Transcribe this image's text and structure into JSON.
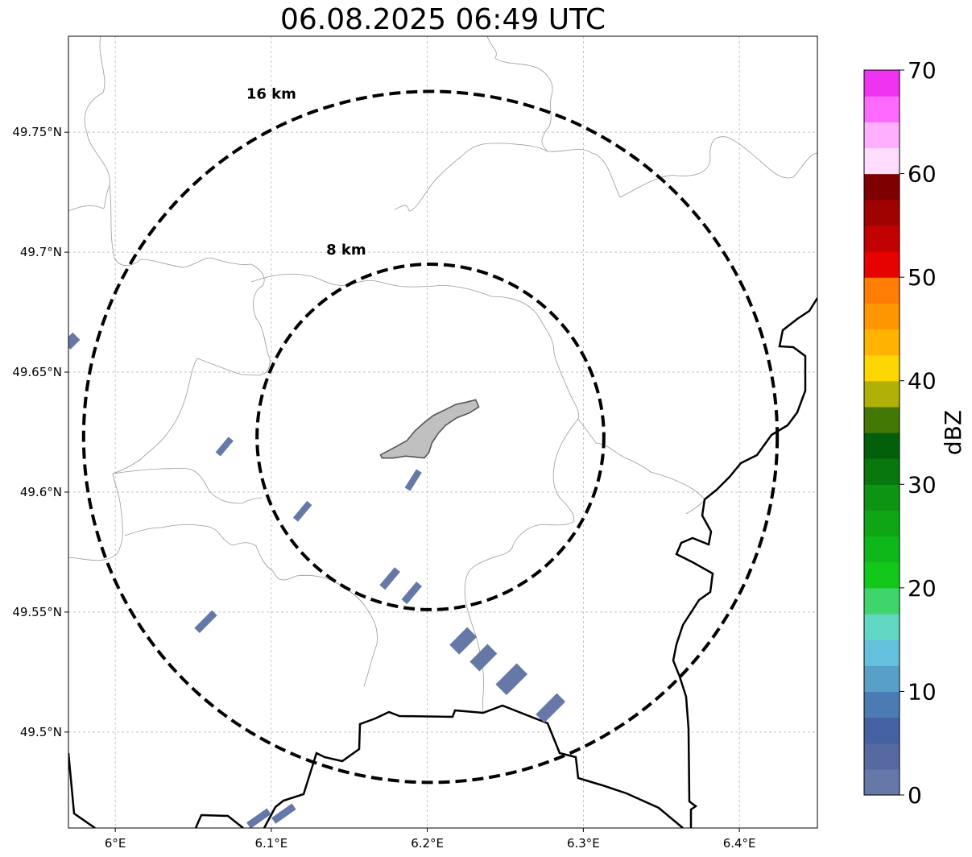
{
  "title": "06.08.2025 06:49 UTC",
  "map": {
    "lon_range": [
      5.97,
      6.45
    ],
    "lat_range": [
      49.46,
      49.79
    ],
    "x_ticks": [
      {
        "value": 6.0,
        "label": "6°E"
      },
      {
        "value": 6.1,
        "label": "6.1°E"
      },
      {
        "value": 6.2,
        "label": "6.2°E"
      },
      {
        "value": 6.3,
        "label": "6.3°E"
      },
      {
        "value": 6.4,
        "label": "6.4°E"
      }
    ],
    "y_ticks": [
      {
        "value": 49.5,
        "label": "49.5°N"
      },
      {
        "value": 49.55,
        "label": "49.55°N"
      },
      {
        "value": 49.6,
        "label": "49.6°N"
      },
      {
        "value": 49.65,
        "label": "49.65°N"
      },
      {
        "value": 49.7,
        "label": "49.7°N"
      },
      {
        "value": 49.75,
        "label": "49.75°N"
      }
    ],
    "grid": true,
    "radar_center": {
      "lon": 6.202,
      "lat": 49.623
    },
    "range_rings": [
      {
        "label": "8 km",
        "lat_radius": 0.072,
        "label_lon": 6.148,
        "label_lat": 49.701
      },
      {
        "label": "16 km",
        "lat_radius": 0.144,
        "label_lon": 6.1,
        "label_lat": 49.766
      }
    ],
    "echoes": [
      {
        "lon": 5.972,
        "lat": 49.663,
        "angle": -45,
        "len": 16,
        "wid": 12
      },
      {
        "lon": 6.07,
        "lat": 49.619,
        "angle": -50,
        "len": 24,
        "wid": 7
      },
      {
        "lon": 6.12,
        "lat": 49.592,
        "angle": -50,
        "len": 26,
        "wid": 7
      },
      {
        "lon": 6.191,
        "lat": 49.605,
        "angle": -58,
        "len": 26,
        "wid": 7
      },
      {
        "lon": 6.176,
        "lat": 49.564,
        "angle": -50,
        "len": 28,
        "wid": 8
      },
      {
        "lon": 6.19,
        "lat": 49.558,
        "angle": -50,
        "len": 28,
        "wid": 8
      },
      {
        "lon": 6.058,
        "lat": 49.546,
        "angle": -45,
        "len": 30,
        "wid": 8
      },
      {
        "lon": 6.223,
        "lat": 49.538,
        "angle": -45,
        "len": 30,
        "wid": 16
      },
      {
        "lon": 6.236,
        "lat": 49.531,
        "angle": -45,
        "len": 30,
        "wid": 16
      },
      {
        "lon": 6.254,
        "lat": 49.522,
        "angle": -45,
        "len": 36,
        "wid": 18
      },
      {
        "lon": 6.279,
        "lat": 49.51,
        "angle": -45,
        "len": 36,
        "wid": 14
      },
      {
        "lon": 6.092,
        "lat": 49.464,
        "angle": -35,
        "len": 30,
        "wid": 8
      },
      {
        "lon": 6.108,
        "lat": 49.466,
        "angle": -35,
        "len": 30,
        "wid": 8
      }
    ],
    "echo_color": "#6678a8",
    "city_polygon": [
      [
        6.17,
        49.6155
      ],
      [
        6.18,
        49.619
      ],
      [
        6.187,
        49.6215
      ],
      [
        6.192,
        49.6255
      ],
      [
        6.198,
        49.629
      ],
      [
        6.204,
        49.632
      ],
      [
        6.212,
        49.6345
      ],
      [
        6.218,
        49.6365
      ],
      [
        6.225,
        49.6375
      ],
      [
        6.231,
        49.6385
      ],
      [
        6.233,
        49.6355
      ],
      [
        6.227,
        49.633
      ],
      [
        6.219,
        49.631
      ],
      [
        6.212,
        49.628
      ],
      [
        6.207,
        49.6245
      ],
      [
        6.203,
        49.6205
      ],
      [
        6.201,
        49.6165
      ],
      [
        6.198,
        49.6142
      ],
      [
        6.194,
        49.6145
      ],
      [
        6.186,
        49.615
      ],
      [
        6.178,
        49.6142
      ],
      [
        6.171,
        49.6142
      ]
    ],
    "city_fill": "#c0c0c0"
  },
  "colorbar": {
    "label": "dBZ",
    "min": 0,
    "max": 70,
    "ticks": [
      {
        "value": 0,
        "label": "0"
      },
      {
        "value": 10,
        "label": "10"
      },
      {
        "value": 20,
        "label": "20"
      },
      {
        "value": 30,
        "label": "30"
      },
      {
        "value": 40,
        "label": "40"
      },
      {
        "value": 50,
        "label": "50"
      },
      {
        "value": 60,
        "label": "60"
      },
      {
        "value": 70,
        "label": "70"
      }
    ],
    "colors": [
      "#6678a8",
      "#5669a0",
      "#4461a1",
      "#4a7bb3",
      "#58a0c8",
      "#64c0dc",
      "#60d8c4",
      "#3ed66a",
      "#12c81a",
      "#0eb818",
      "#0ea614",
      "#0c9412",
      "#08780e",
      "#045f0a",
      "#437805",
      "#b0b106",
      "#fed601",
      "#ffb402",
      "#fe9601",
      "#ff7d04",
      "#e50200",
      "#c20202",
      "#a00101",
      "#7e0000",
      "#ffddff",
      "#feaffe",
      "#fe69fe",
      "#f033f0"
    ]
  }
}
